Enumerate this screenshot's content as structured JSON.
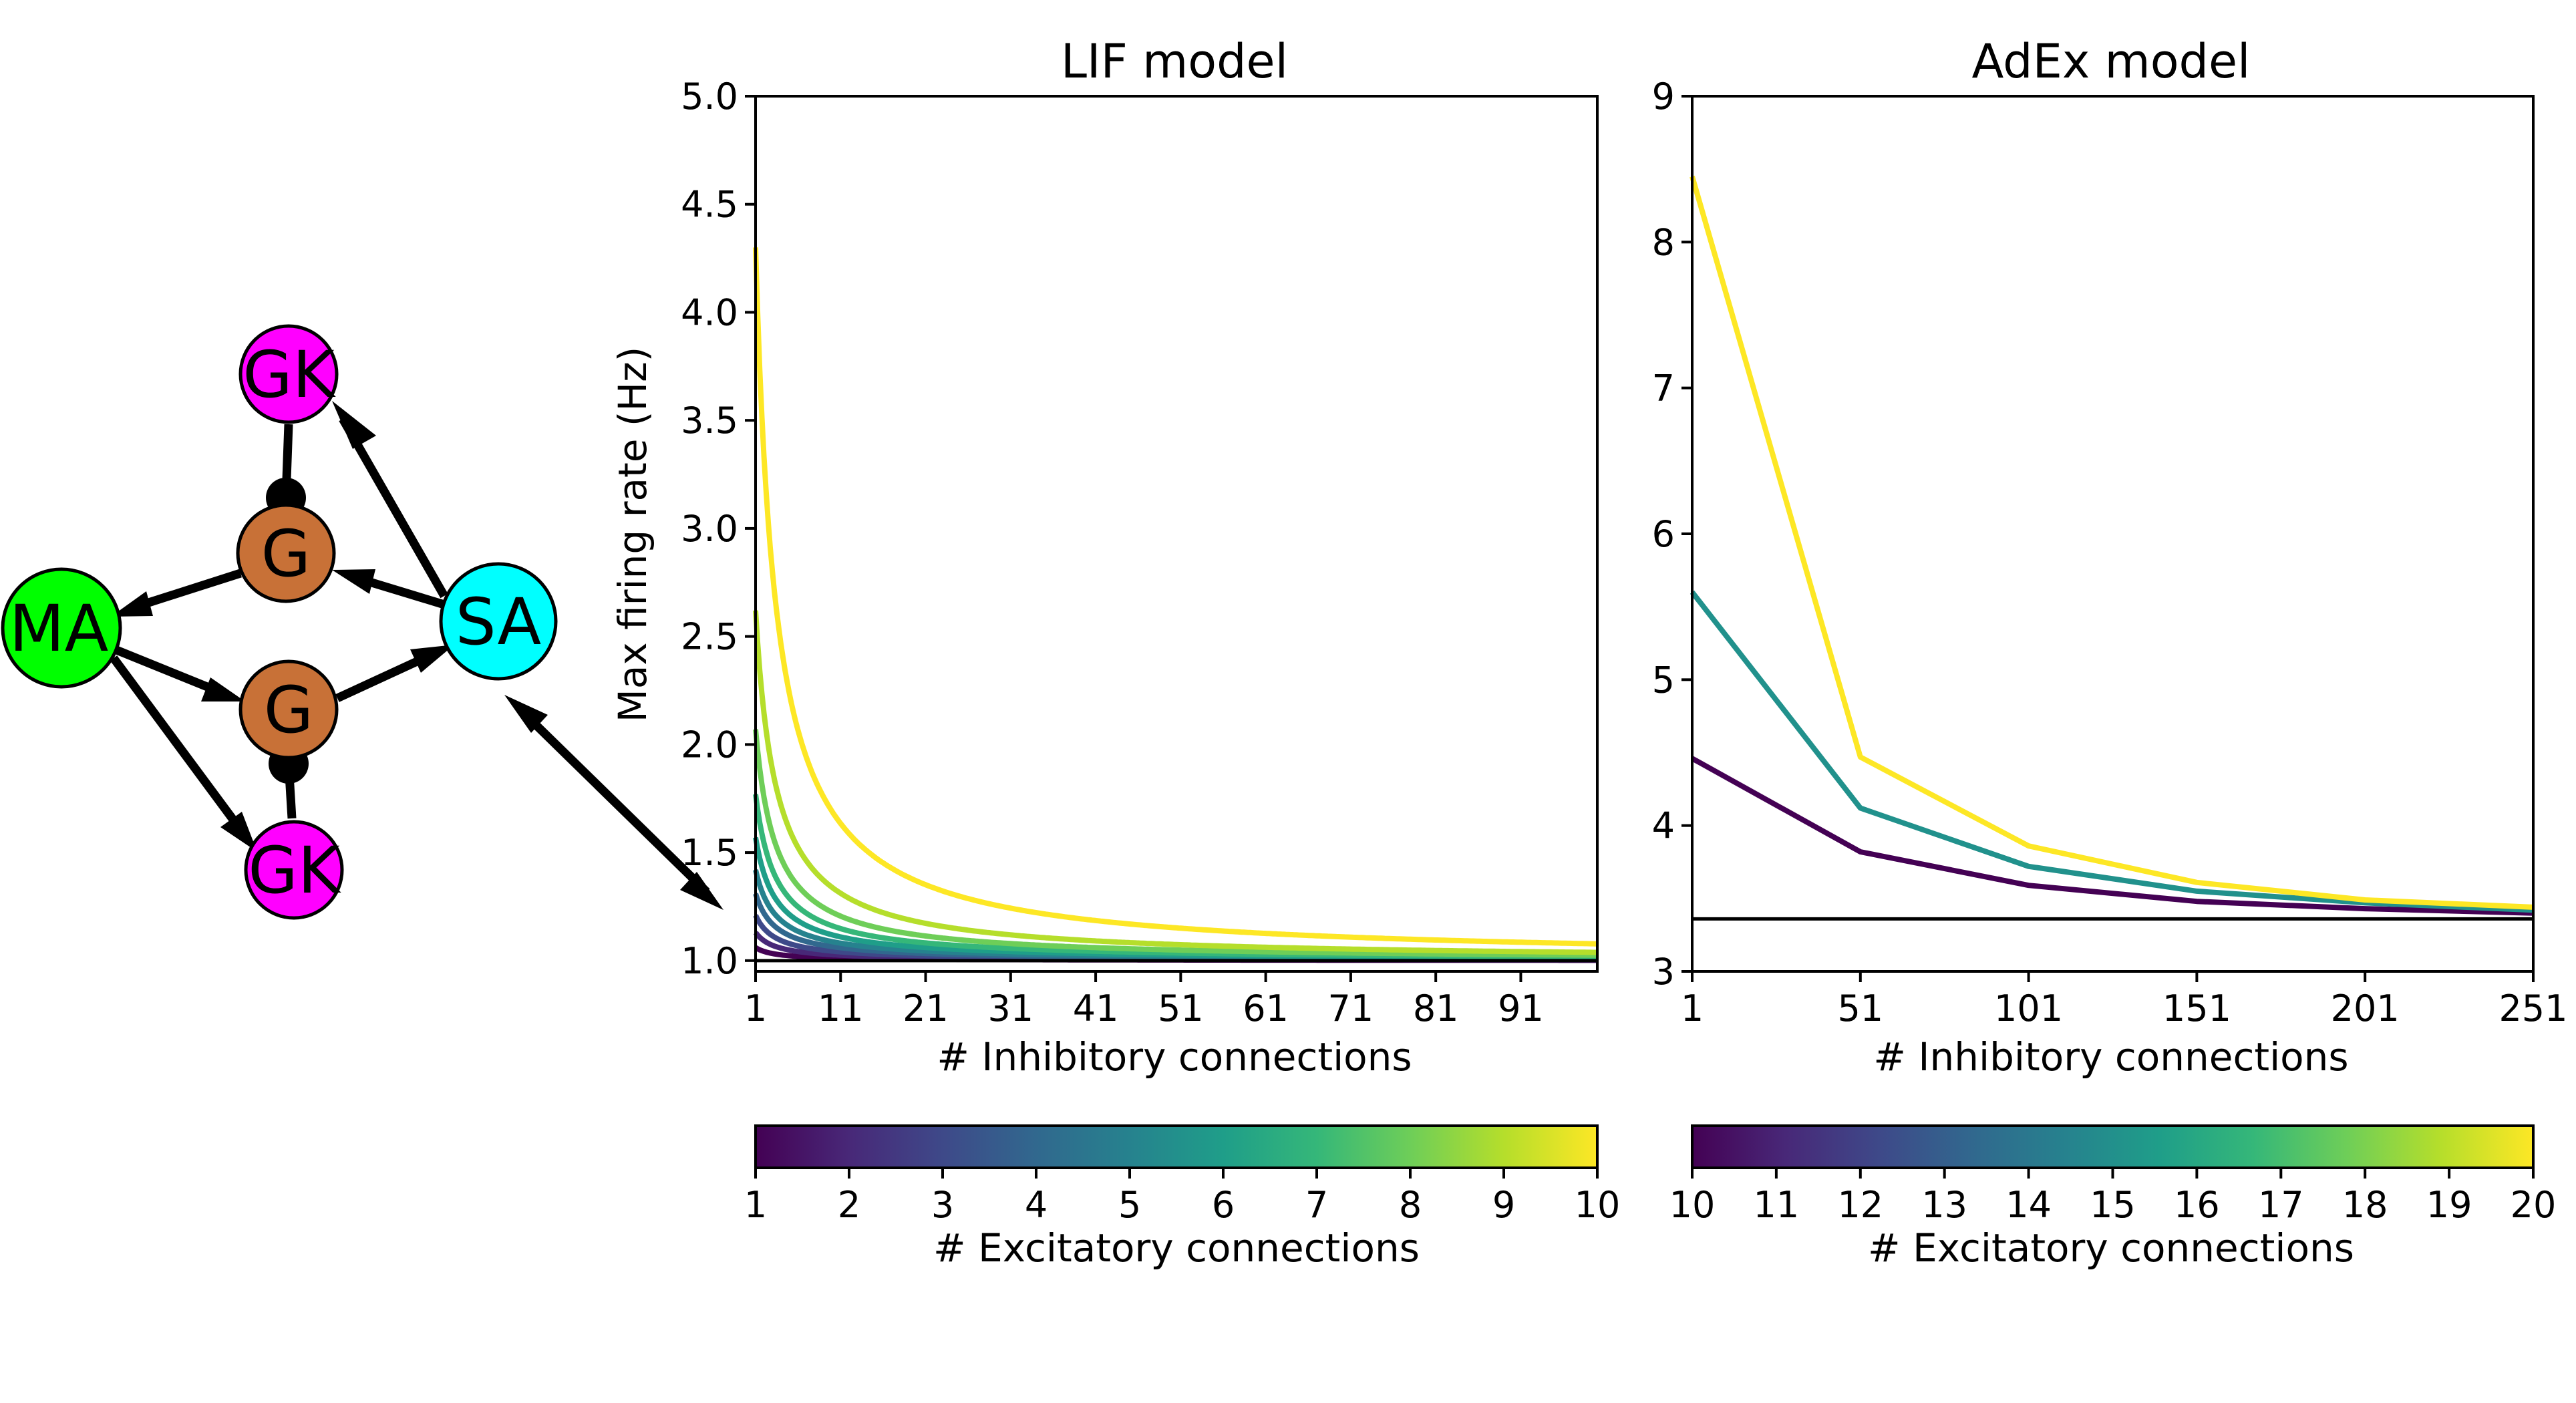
{
  "network": {
    "nodes": [
      {
        "id": "gk_top",
        "label": "GK",
        "color": "#ff00ff"
      },
      {
        "id": "g_top",
        "label": "G",
        "color": "#c87137"
      },
      {
        "id": "ma",
        "label": "MA",
        "color": "#00ff00"
      },
      {
        "id": "sa",
        "label": "SA",
        "color": "#00ffff"
      },
      {
        "id": "g_bot",
        "label": "G",
        "color": "#c87137"
      },
      {
        "id": "gk_bot",
        "label": "GK",
        "color": "#ff00ff"
      }
    ],
    "edges": [
      {
        "from": "sa",
        "to": "gk_top",
        "kind": "excitatory"
      },
      {
        "from": "sa",
        "to": "g_top",
        "kind": "excitatory"
      },
      {
        "from": "g_top",
        "to": "ma",
        "kind": "excitatory"
      },
      {
        "from": "ma",
        "to": "g_bot",
        "kind": "excitatory"
      },
      {
        "from": "g_bot",
        "to": "sa",
        "kind": "excitatory"
      },
      {
        "from": "ma",
        "to": "gk_bot",
        "kind": "excitatory"
      },
      {
        "from": "gk_top",
        "to": "g_top",
        "kind": "inhibitory"
      },
      {
        "from": "gk_bot",
        "to": "g_bot",
        "kind": "inhibitory"
      }
    ]
  },
  "chart_data": [
    {
      "type": "line",
      "title": "LIF model",
      "xlabel": "# Inhibitory connections",
      "ylabel": "Max firing rate (Hz)",
      "xlim": [
        1,
        100
      ],
      "ylim": [
        0.95,
        5.0
      ],
      "xticks": [
        1,
        11,
        21,
        31,
        41,
        51,
        61,
        71,
        81,
        91
      ],
      "yticks": [
        "1.0",
        "1.5",
        "2.0",
        "2.5",
        "3.0",
        "3.5",
        "4.0",
        "4.5",
        "5.0"
      ],
      "baseline": 1.0,
      "series": [
        {
          "excitatory": 1,
          "color": "#440154",
          "peak": 1.06
        },
        {
          "excitatory": 2,
          "color": "#482878",
          "peak": 1.13
        },
        {
          "excitatory": 3,
          "color": "#3e4989",
          "peak": 1.21
        },
        {
          "excitatory": 4,
          "color": "#31688e",
          "peak": 1.31
        },
        {
          "excitatory": 5,
          "color": "#26828e",
          "peak": 1.42
        },
        {
          "excitatory": 6,
          "color": "#1f9e89",
          "peak": 1.57
        },
        {
          "excitatory": 7,
          "color": "#35b779",
          "peak": 1.77
        },
        {
          "excitatory": 8,
          "color": "#6ece58",
          "peak": 2.07
        },
        {
          "excitatory": 9,
          "color": "#b5de2b",
          "peak": 2.62
        },
        {
          "excitatory": 10,
          "color": "#fde725",
          "peak": 4.3
        }
      ],
      "colorbar": {
        "label": "# Excitatory connections",
        "ticks": [
          "1",
          "2",
          "3",
          "4",
          "5",
          "6",
          "7",
          "8",
          "9",
          "10"
        ]
      }
    },
    {
      "type": "line",
      "title": "AdEx model",
      "xlabel": "# Inhibitory connections",
      "ylabel": "",
      "xlim": [
        1,
        251
      ],
      "ylim": [
        3,
        9
      ],
      "xticks": [
        1,
        51,
        101,
        151,
        201,
        251
      ],
      "yticks": [
        "3",
        "4",
        "5",
        "6",
        "7",
        "8",
        "9"
      ],
      "baseline": 3.36,
      "series": [
        {
          "excitatory": 10,
          "color": "#440154",
          "x": [
            1,
            51,
            101,
            151,
            201,
            251
          ],
          "y": [
            4.46,
            3.82,
            3.59,
            3.48,
            3.43,
            3.4
          ]
        },
        {
          "excitatory": 15,
          "color": "#21918c",
          "x": [
            1,
            51,
            101,
            151,
            201,
            251
          ],
          "y": [
            5.6,
            4.12,
            3.72,
            3.55,
            3.47,
            3.42
          ]
        },
        {
          "excitatory": 20,
          "color": "#fde725",
          "x": [
            1,
            51,
            101,
            151,
            201,
            251
          ],
          "y": [
            8.45,
            4.47,
            3.86,
            3.61,
            3.49,
            3.44
          ]
        }
      ],
      "colorbar": {
        "label": "# Excitatory connections",
        "ticks": [
          "10",
          "11",
          "12",
          "13",
          "14",
          "15",
          "16",
          "17",
          "18",
          "19",
          "20"
        ]
      }
    }
  ]
}
